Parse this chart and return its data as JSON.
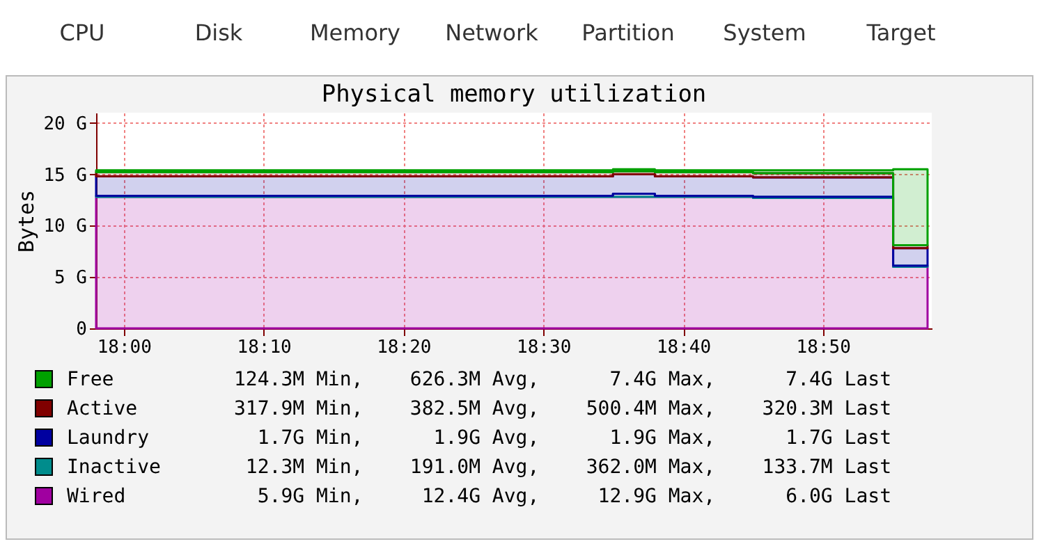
{
  "chart_data": {
    "type": "area",
    "title": "Physical memory utilization",
    "ylabel": "Bytes",
    "stacked": true,
    "grid": true,
    "legend": "bottom",
    "line_style": "solid",
    "x": [
      17.967,
      18.0,
      18.083,
      18.167,
      18.25,
      18.333,
      18.417,
      18.5,
      18.583,
      18.633,
      18.667,
      18.75,
      18.833,
      18.908,
      18.917,
      18.958
    ],
    "xlim": [
      17.967,
      18.963
    ],
    "xticks": [
      {
        "value": 18.0,
        "label": "18:00"
      },
      {
        "value": 18.1667,
        "label": "18:10"
      },
      {
        "value": 18.3333,
        "label": "18:20"
      },
      {
        "value": 18.5,
        "label": "18:30"
      },
      {
        "value": 18.6667,
        "label": "18:40"
      },
      {
        "value": 18.8333,
        "label": "18:50"
      }
    ],
    "ylim": [
      0,
      21
    ],
    "yticks": [
      {
        "value": 0,
        "label": "0"
      },
      {
        "value": 5,
        "label": "5 G"
      },
      {
        "value": 10,
        "label": "10 G"
      },
      {
        "value": 15,
        "label": "15 G"
      },
      {
        "value": 20,
        "label": "20 G"
      }
    ],
    "series": [
      {
        "name": "Wired",
        "color": "#a000a0",
        "values": [
          12.8,
          12.8,
          12.8,
          12.8,
          12.8,
          12.8,
          12.8,
          12.8,
          12.8,
          12.8,
          12.8,
          12.7,
          12.7,
          12.7,
          6.0,
          6.0
        ]
      },
      {
        "name": "Inactive",
        "color": "#008c8c",
        "values": [
          0.1,
          0.1,
          0.1,
          0.1,
          0.1,
          0.1,
          0.1,
          0.1,
          0.3,
          0.1,
          0.1,
          0.1,
          0.1,
          0.1,
          0.1,
          0.1
        ]
      },
      {
        "name": "Laundry",
        "color": "#0000a0",
        "values": [
          1.9,
          1.9,
          1.9,
          1.9,
          1.9,
          1.9,
          1.9,
          1.9,
          1.9,
          1.9,
          1.9,
          1.9,
          1.9,
          1.9,
          1.7,
          1.7
        ]
      },
      {
        "name": "Active",
        "color": "#800000",
        "values": [
          0.4,
          0.4,
          0.4,
          0.4,
          0.4,
          0.4,
          0.4,
          0.4,
          0.3,
          0.4,
          0.4,
          0.4,
          0.4,
          0.4,
          0.3,
          0.3
        ]
      },
      {
        "name": "Free",
        "color": "#00a000",
        "values": [
          0.2,
          0.2,
          0.2,
          0.2,
          0.2,
          0.2,
          0.2,
          0.2,
          0.2,
          0.2,
          0.2,
          0.3,
          0.3,
          0.3,
          7.4,
          7.4
        ]
      }
    ],
    "annotations": [
      "CPU",
      "Disk",
      "Memory",
      "Network",
      "Partition",
      "System",
      "Target",
      "  5.9G Min,     12.4G Avg,     12.9G Max,      6.0G Last",
      " 12.3M Min,    191.0M Avg,    362.0M Max,    133.7M Last",
      "  1.7G Min,      1.9G Avg,      1.9G Max,      1.7G Last",
      "317.9M Min,    382.5M Avg,    500.4M Max,    320.3M Last",
      "124.3M Min,    626.3M Avg,      7.4G Max,      7.4G Last"
    ]
  }
}
